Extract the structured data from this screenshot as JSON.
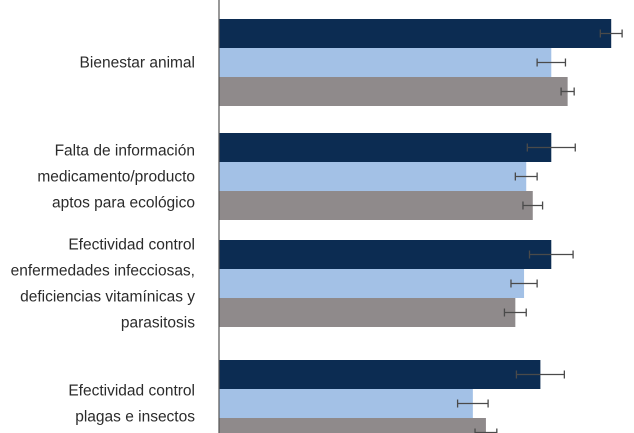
{
  "chart_data": {
    "type": "bar",
    "orientation": "horizontal",
    "categories": [
      [
        "Bienestar animal"
      ],
      [
        "Falta de información",
        "medicamento/producto",
        "aptos para ecológico"
      ],
      [
        "Efectividad control",
        "enfermedades infecciosas,",
        "deficiencias vitamínicas y",
        "parasitosis"
      ],
      [
        "Efectividad control",
        "plagas e insectos"
      ]
    ],
    "series": [
      {
        "color": "#0c2c52",
        "values": [
          3.6,
          3.05,
          3.05,
          2.95
        ],
        "errors": [
          0.1,
          0.22,
          0.2,
          0.22
        ]
      },
      {
        "color": "#a3c1e6",
        "values": [
          3.05,
          2.82,
          2.8,
          2.33
        ],
        "errors": [
          0.13,
          0.1,
          0.12,
          0.14
        ]
      },
      {
        "color": "#8f8a8b",
        "values": [
          3.2,
          2.88,
          2.72,
          2.45
        ],
        "errors": [
          0.06,
          0.09,
          0.1,
          0.1
        ]
      }
    ],
    "xlim": [
      0,
      3.8
    ],
    "grid": false,
    "legend": "none"
  }
}
